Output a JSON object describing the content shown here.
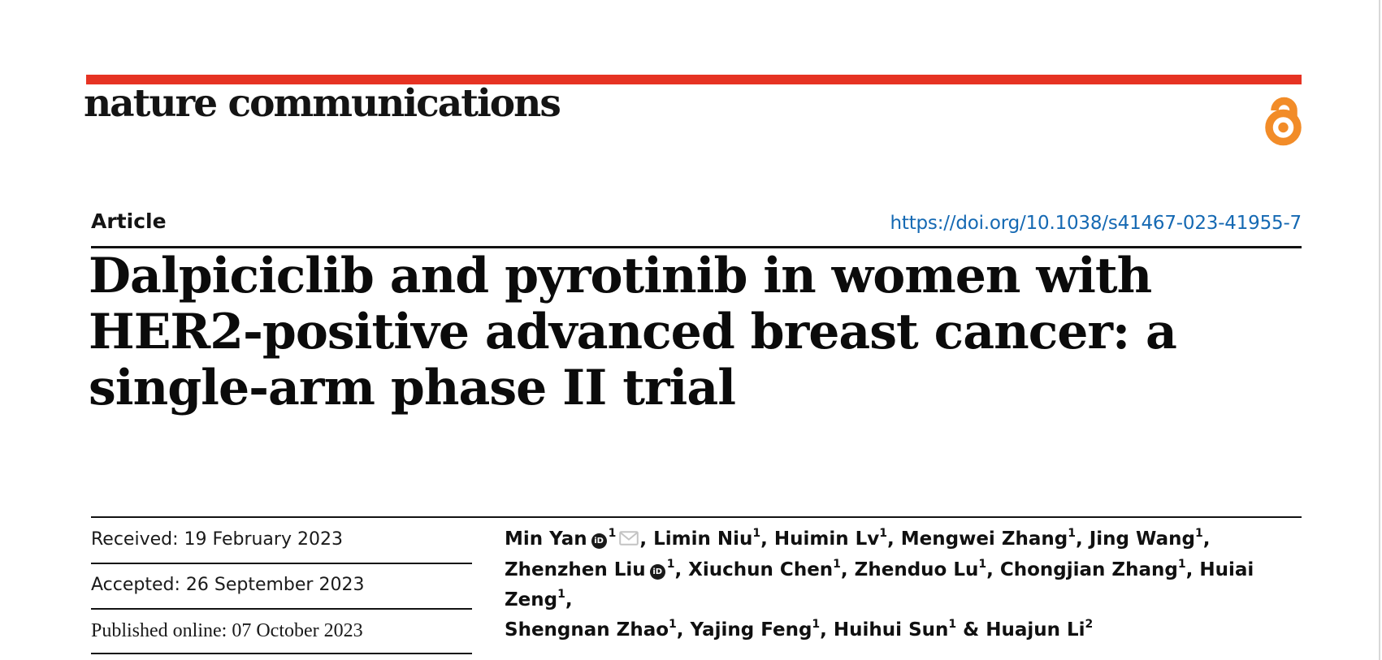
{
  "colors": {
    "accent_red": "#e63323",
    "link_blue": "#1569b3",
    "oa_orange": "#f28c28"
  },
  "journal": {
    "name": "nature communications"
  },
  "icons": {
    "open_access": "open-lock",
    "orcid_text": "iD",
    "envelope": "envelope-outline"
  },
  "article": {
    "label": "Article",
    "doi": "https://doi.org/10.1038/s41467-023-41955-7",
    "title_lines": [
      "Dalpiciclib and pyrotinib in women with",
      "HER2-positive advanced breast cancer: a",
      "single-arm phase II trial"
    ]
  },
  "meta": {
    "received": "Received: 19 February 2023",
    "accepted": "Accepted: 26 September 2023",
    "published": "Published online: 07 October 2023"
  },
  "authors": {
    "lines": [
      [
        {
          "text": "Min Yan"
        },
        {
          "icon": "orcid"
        },
        {
          "sup": "1"
        },
        {
          "icon": "envelope"
        },
        {
          "text": ", Limin Niu"
        },
        {
          "sup": "1"
        },
        {
          "text": ", Huimin Lv"
        },
        {
          "sup": "1"
        },
        {
          "text": ", Mengwei Zhang"
        },
        {
          "sup": "1"
        },
        {
          "text": ", Jing Wang"
        },
        {
          "sup": "1"
        },
        {
          "text": ","
        }
      ],
      [
        {
          "text": "Zhenzhen Liu"
        },
        {
          "icon": "orcid"
        },
        {
          "sup": "1"
        },
        {
          "text": ", Xiuchun Chen"
        },
        {
          "sup": "1"
        },
        {
          "text": ", Zhenduo Lu"
        },
        {
          "sup": "1"
        },
        {
          "text": ", Chongjian Zhang"
        },
        {
          "sup": "1"
        },
        {
          "text": ", Huiai Zeng"
        },
        {
          "sup": "1"
        },
        {
          "text": ","
        }
      ],
      [
        {
          "text": "Shengnan Zhao"
        },
        {
          "sup": "1"
        },
        {
          "text": ", Yajing Feng"
        },
        {
          "sup": "1"
        },
        {
          "text": ", Huihui Sun"
        },
        {
          "sup": "1"
        },
        {
          "text": " & Huajun Li"
        },
        {
          "sup": "2"
        }
      ]
    ]
  }
}
